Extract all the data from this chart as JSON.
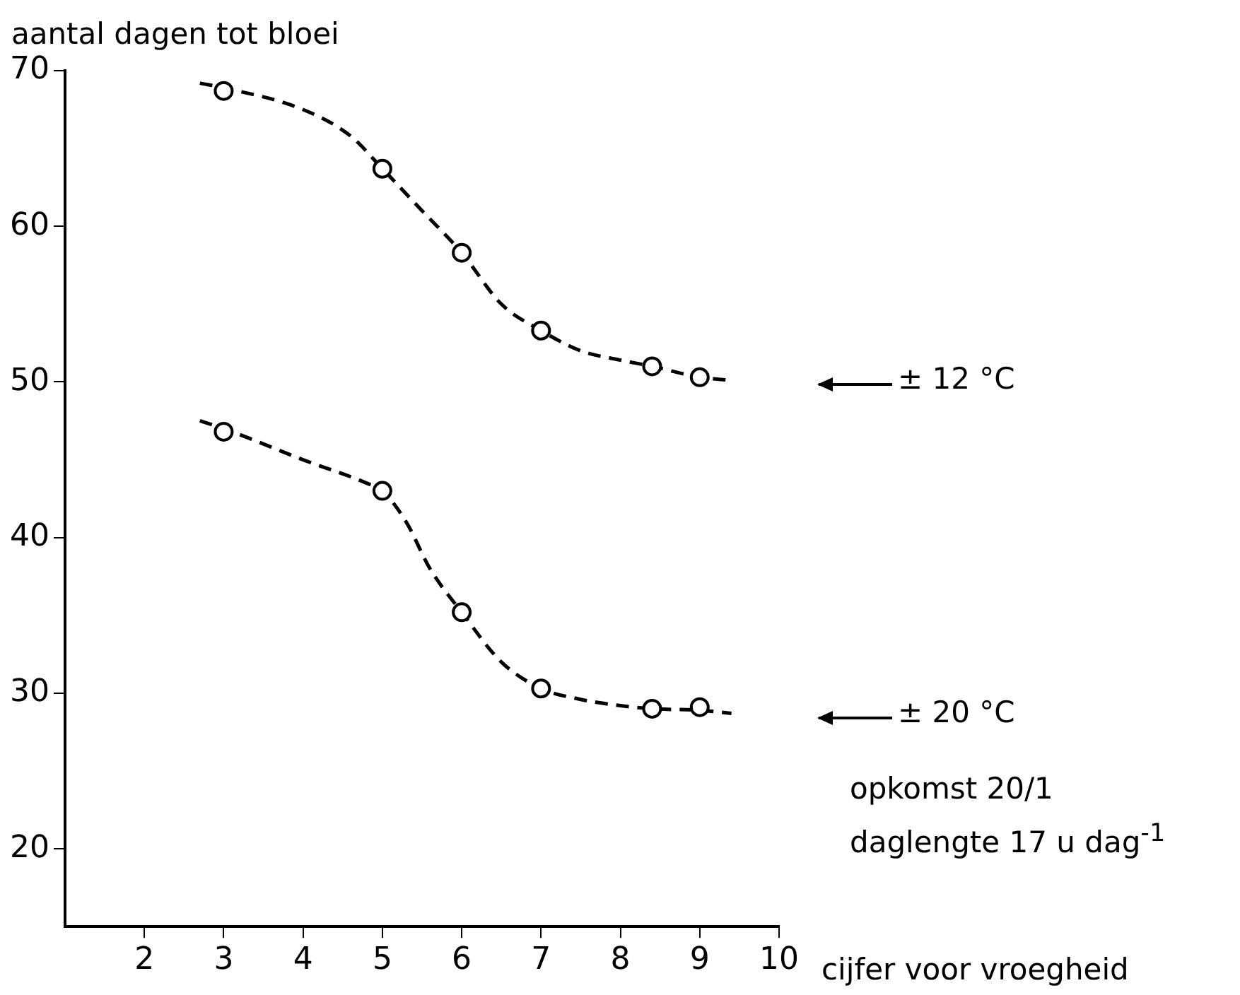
{
  "chart_data": {
    "type": "scatter",
    "ylabel": "aantal dagen tot bloei",
    "xlabel": "cijfer voor vroegheid",
    "xlim": [
      1,
      10
    ],
    "xticks": [
      2,
      3,
      4,
      5,
      6,
      7,
      8,
      9,
      10
    ],
    "ylim": [
      15,
      70
    ],
    "yticks": [
      20,
      30,
      40,
      50,
      60,
      70
    ],
    "grid": false,
    "legend": false,
    "series": [
      {
        "marker": "circle",
        "color": "#000000",
        "x": [
          3,
          5,
          6,
          7,
          8.4,
          9
        ],
        "values": [
          68.7,
          63.7,
          58.3,
          53.3,
          51,
          50.3
        ]
      },
      {
        "marker": "circle",
        "color": "#000000",
        "x": [
          3,
          5,
          6,
          7,
          8.4,
          9
        ],
        "values": [
          46.8,
          43,
          35.2,
          30.3,
          29,
          29.1
        ]
      },
      {
        "type": "line",
        "marker": "none",
        "line_style": "dashed",
        "color": "#000000",
        "x": [
          2.7,
          3,
          4,
          4.6,
          5,
          5.5,
          6,
          6.5,
          7,
          7.5,
          8,
          8.4,
          9,
          9.4
        ],
        "values": [
          69.2,
          68.9,
          67.5,
          65.8,
          63.7,
          61,
          58.3,
          55,
          53.3,
          52,
          51.4,
          51,
          50.3,
          50.1
        ]
      },
      {
        "type": "line",
        "marker": "none",
        "line_style": "dashed",
        "color": "#000000",
        "x": [
          2.7,
          3,
          4,
          4.8,
          5,
          5.3,
          5.6,
          6,
          6.5,
          7,
          7.5,
          8,
          8.4,
          9,
          9.4
        ],
        "values": [
          47.5,
          47,
          45,
          43.5,
          43,
          41,
          38,
          35.2,
          32,
          30.3,
          29.6,
          29.2,
          29,
          28.9,
          28.7
        ]
      }
    ],
    "annotations": [
      "± 12 °C",
      "± 20 °C",
      "opkomst 20/1",
      "daglengte 17 u dag$^{-1}$"
    ]
  }
}
